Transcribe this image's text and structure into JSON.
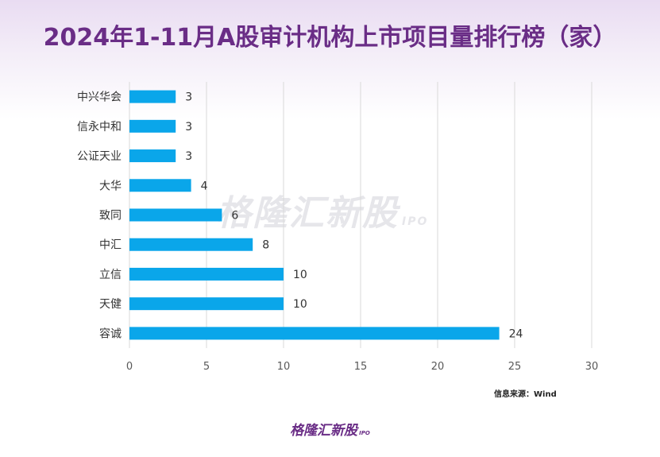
{
  "title": "2024年1-11月A股审计机构上市项目量排行榜（家）",
  "source": "信息来源：Wind",
  "watermark": "格隆汇新股",
  "footer_logo": "格隆汇新股",
  "logo_suffix": "IPO",
  "colors": {
    "bar": "#0aa6ea",
    "title": "#6a2d86",
    "grid": "#d9d9d9"
  },
  "chart_data": {
    "type": "bar",
    "orientation": "horizontal",
    "categories": [
      "中兴华会",
      "信永中和",
      "公证天业",
      "大华",
      "致同",
      "中汇",
      "立信",
      "天健",
      "容诚"
    ],
    "values": [
      3,
      3,
      3,
      4,
      6,
      8,
      10,
      10,
      24
    ],
    "xlim": [
      0,
      30
    ],
    "xticks": [
      0,
      5,
      10,
      15,
      20,
      25,
      30
    ],
    "grid": true,
    "data_labels": true
  }
}
